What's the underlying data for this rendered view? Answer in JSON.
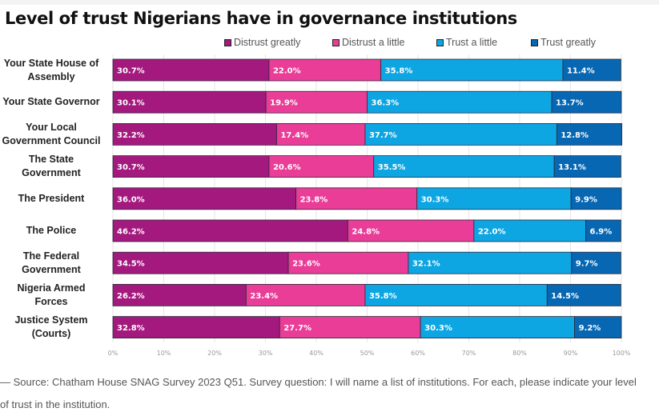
{
  "title": "Level of trust Nigerians have in governance institutions",
  "source": "— Source: Chatham House SNAG Survey 2023 Q51. Survey question: I will name a list of institutions. For each, please indicate your level of trust in the institution.",
  "chart_data": {
    "type": "bar",
    "orientation": "horizontal",
    "stacked": true,
    "title": "Level of trust Nigerians have in governance institutions",
    "xlabel": "",
    "ylabel": "",
    "xlim": [
      0,
      100
    ],
    "x_ticks": [
      "0%",
      "10%",
      "20%",
      "30%",
      "40%",
      "50%",
      "60%",
      "70%",
      "80%",
      "90%",
      "100%"
    ],
    "grid": true,
    "legend_position": "top",
    "categories": [
      [
        "Your State House of",
        "Assembly"
      ],
      [
        "Your State Governor"
      ],
      [
        "Your Local",
        "Government Council"
      ],
      [
        "The State",
        "Government"
      ],
      [
        "The President"
      ],
      [
        "The Police"
      ],
      [
        "The Federal",
        "Government"
      ],
      [
        "Nigeria Armed",
        "Forces"
      ],
      [
        "Justice System",
        "(Courts)"
      ]
    ],
    "series": [
      {
        "name": "Distrust greatly",
        "color": "#a3197d",
        "values": [
          30.7,
          30.1,
          32.2,
          30.7,
          36.0,
          46.2,
          34.5,
          26.2,
          32.8
        ]
      },
      {
        "name": "Distrust a little",
        "color": "#e93d97",
        "values": [
          22.0,
          19.9,
          17.4,
          20.6,
          23.8,
          24.8,
          23.6,
          23.4,
          27.7
        ]
      },
      {
        "name": "Trust a little",
        "color": "#0ea5e3",
        "values": [
          35.8,
          36.3,
          37.7,
          35.5,
          30.3,
          22.0,
          32.1,
          35.8,
          30.3
        ]
      },
      {
        "name": "Trust greatly",
        "color": "#0767b3",
        "values": [
          11.4,
          13.7,
          12.8,
          13.1,
          9.9,
          6.9,
          9.7,
          14.5,
          9.2
        ]
      }
    ]
  }
}
